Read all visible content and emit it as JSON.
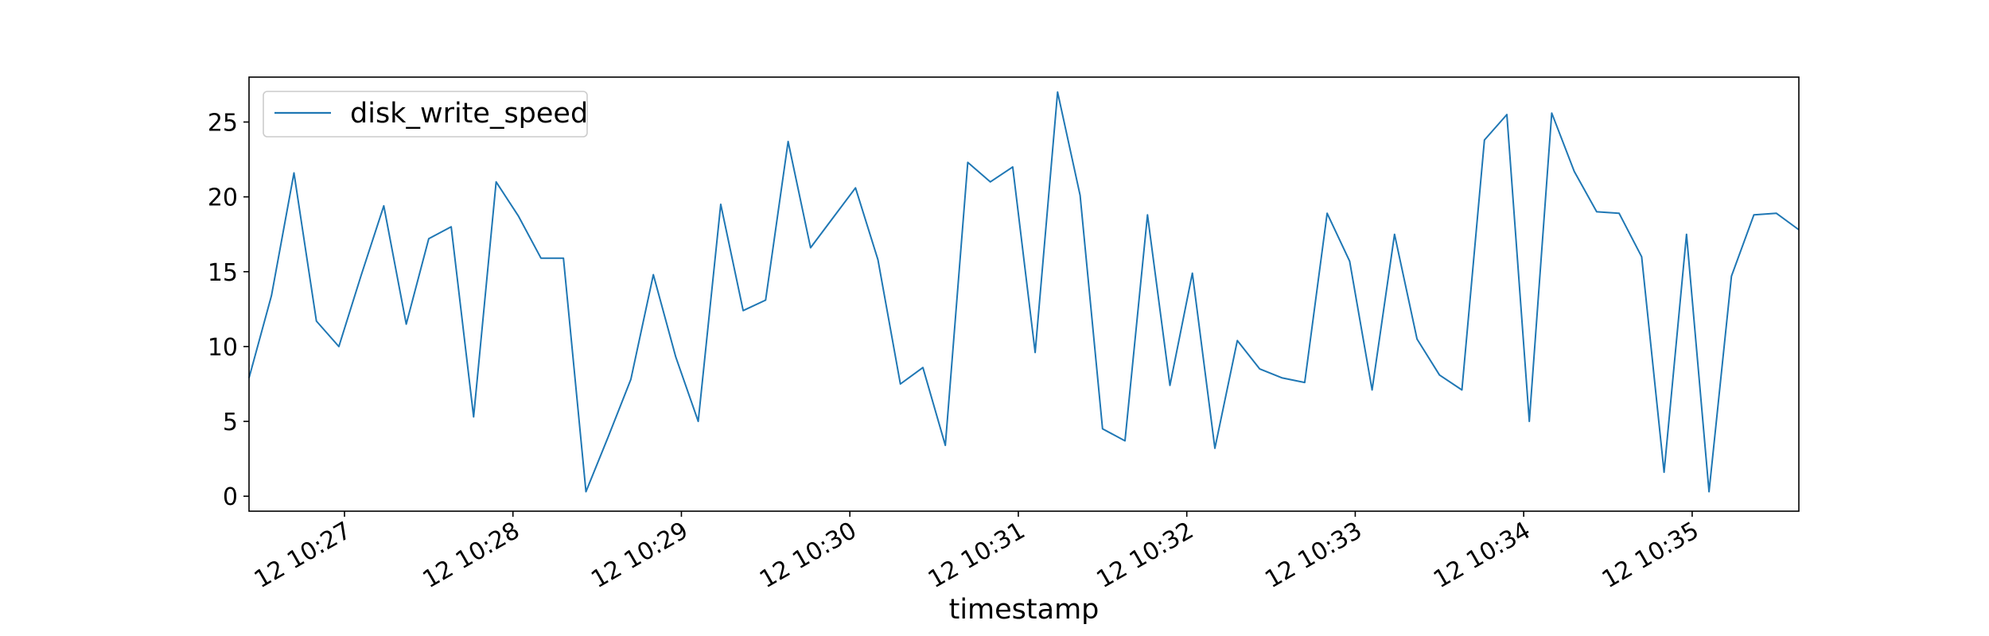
{
  "chart_data": {
    "type": "line",
    "title": "",
    "xlabel": "timestamp",
    "ylabel": "",
    "x_unit": "seconds",
    "x_tick_labels": [
      "12 10:27",
      "12 10:28",
      "12 10:29",
      "12 10:30",
      "12 10:31",
      "12 10:32",
      "12 10:33",
      "12 10:34",
      "12 10:35"
    ],
    "y_ticks": [
      0,
      5,
      10,
      15,
      20,
      25
    ],
    "ylim": [
      -1,
      28
    ],
    "grid": false,
    "legend": {
      "placement": "upper-left"
    },
    "series": [
      {
        "name": "disk_write_speed",
        "color": "#1f77b4",
        "x_start": "12 10:26:26",
        "x_step_seconds": 8,
        "values": [
          7.9,
          13.4,
          21.6,
          11.7,
          10.0,
          14.8,
          19.4,
          11.5,
          17.2,
          18.0,
          5.3,
          21.0,
          18.7,
          15.9,
          15.9,
          0.3,
          4.0,
          7.8,
          14.8,
          9.3,
          5.0,
          19.5,
          12.4,
          13.1,
          23.7,
          16.6,
          18.6,
          20.6,
          15.8,
          7.5,
          8.6,
          3.4,
          22.3,
          21.0,
          22.0,
          9.6,
          27.0,
          20.1,
          4.5,
          3.7,
          18.8,
          7.4,
          14.9,
          3.2,
          10.4,
          8.5,
          7.9,
          7.6,
          18.9,
          15.7,
          7.1,
          17.5,
          10.5,
          8.1,
          7.1,
          23.8,
          25.5,
          5.0,
          25.6,
          21.7,
          19.0,
          18.9,
          16.0,
          1.6,
          17.5,
          0.3,
          14.7,
          18.8,
          18.9,
          17.8
        ]
      }
    ]
  }
}
